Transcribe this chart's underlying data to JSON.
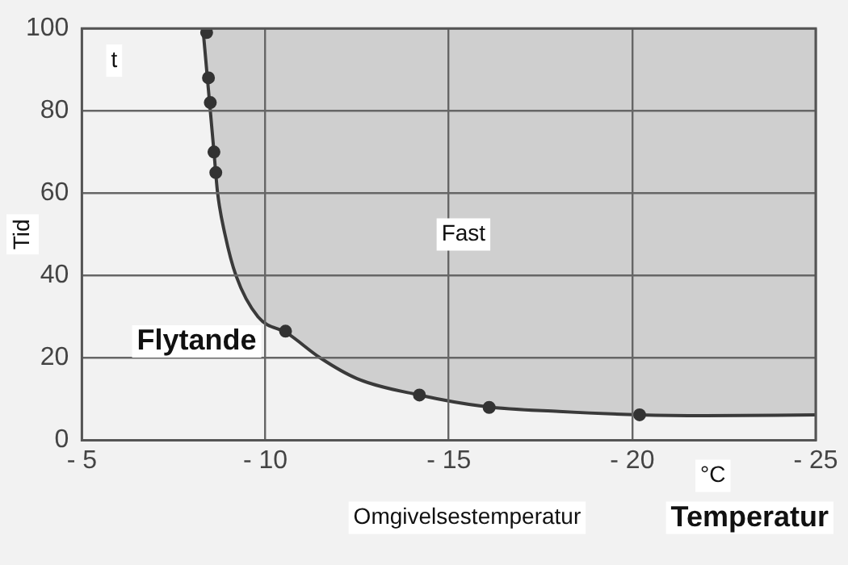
{
  "chart_data": {
    "type": "line",
    "xlabel": "Omgivelsestemperatur",
    "ylabel": "Tid",
    "annotations": [
      "t",
      "°C",
      "Flytande",
      "Fast",
      "Temperatur"
    ],
    "series": [
      {
        "type": "line",
        "color": "#3a3a3a",
        "marker": "none",
        "x": [
          -8.3,
          -8.4,
          -8.5,
          -8.6,
          -8.7,
          -8.9,
          -9.2,
          -9.8,
          -10.6,
          -11.5,
          -12.5,
          -14.2,
          -16,
          -18,
          -20.2,
          -22,
          -25
        ],
        "values": [
          100,
          90,
          80,
          70,
          60,
          50,
          40,
          30,
          26,
          20,
          15,
          11,
          8.2,
          7,
          6.2,
          6,
          6.2
        ]
      },
      {
        "type": "scatter",
        "color": "#333333",
        "x": [
          -8.4,
          -8.45,
          -8.5,
          -8.6,
          -8.65,
          -10.55,
          -14.2,
          -16.1,
          -20.2
        ],
        "values": [
          99,
          88,
          82,
          70,
          65,
          26.5,
          11,
          8,
          6.2
        ]
      }
    ],
    "marker": "circle",
    "line_style": "solid",
    "grid": true,
    "legend": false,
    "xlim": [
      -5,
      -25
    ],
    "ylim": [
      0,
      100
    ],
    "xticks": [
      {
        "value": -5,
        "label": "- 5"
      },
      {
        "value": -10,
        "label": "- 10"
      },
      {
        "value": -15,
        "label": "- 15"
      },
      {
        "value": -20,
        "label": "- 20"
      },
      {
        "value": -25,
        "label": "- 25"
      }
    ],
    "yticks": [
      0,
      20,
      40,
      60,
      80,
      100
    ]
  }
}
